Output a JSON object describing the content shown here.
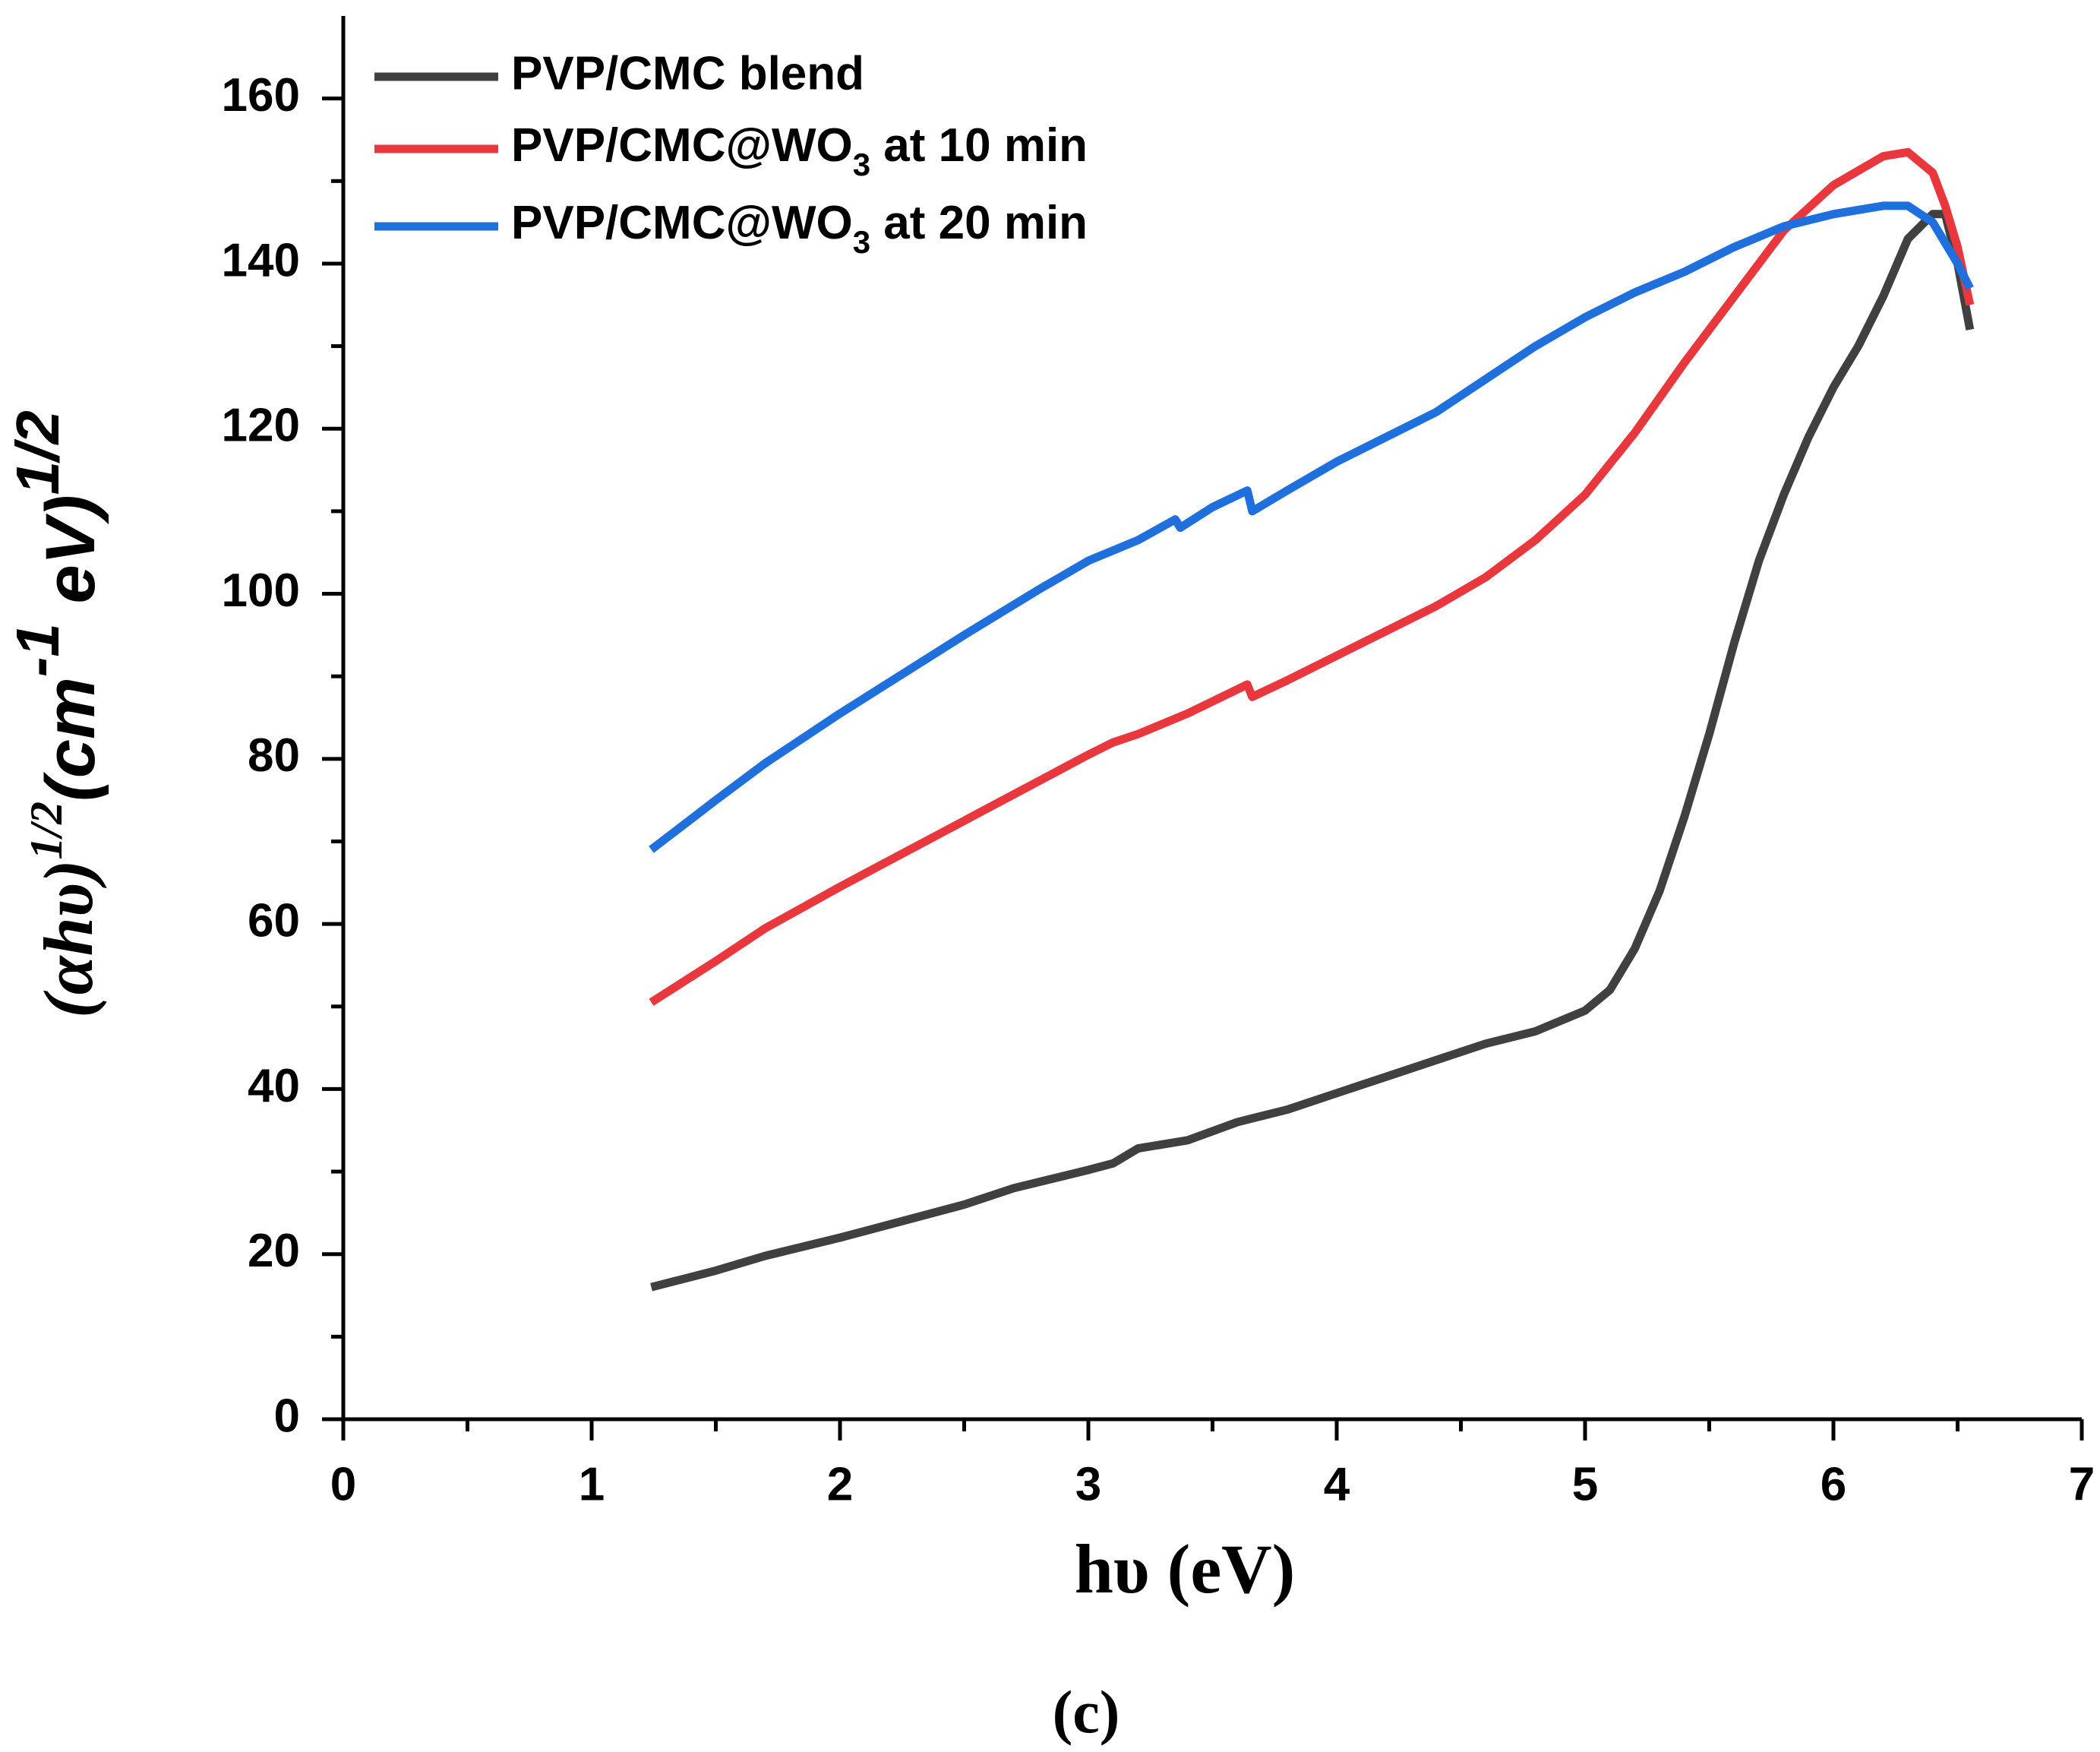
{
  "chart_data": {
    "type": "line",
    "xlabel": "hυ (eV)",
    "ylabel": [
      {
        "text": "(αhυ)",
        "sup": false
      },
      {
        "text": "1/2",
        "sup": true
      },
      {
        "text": "(cm",
        "sup": false
      },
      {
        "text": "-1",
        "sup": true
      },
      {
        "text": " eV)",
        "sup": false
      },
      {
        "text": "1/2",
        "sup": true
      }
    ],
    "caption": "(c)",
    "xlim": [
      0,
      7
    ],
    "xticks": [
      0,
      1,
      2,
      3,
      4,
      5,
      6,
      7
    ],
    "xminorticks": [
      0.5,
      1.5,
      2.5,
      3.5,
      4.5,
      5.5,
      6.5
    ],
    "ylim": [
      0,
      170
    ],
    "yticks": [
      0,
      20,
      40,
      60,
      80,
      100,
      120,
      140,
      160
    ],
    "yminorticks": [
      10,
      30,
      50,
      70,
      90,
      110,
      130,
      150
    ],
    "legend": "top-left",
    "series": [
      {
        "name": "PVP/CMC blend",
        "color": "#404040",
        "x": [
          1.24,
          1.5,
          1.7,
          2,
          2.5,
          2.7,
          3.0,
          3.1,
          3.2,
          3.4,
          3.6,
          3.8,
          4,
          4.2,
          4.4,
          4.6,
          4.8,
          5.0,
          5.1,
          5.2,
          5.3,
          5.4,
          5.5,
          5.6,
          5.7,
          5.8,
          5.9,
          6.0,
          6.1,
          6.2,
          6.3,
          6.4,
          6.45,
          6.5,
          6.55
        ],
        "values": [
          16,
          18,
          19.8,
          22,
          26,
          28,
          30.2,
          31,
          32.8,
          33.8,
          36,
          37.5,
          39.5,
          41.5,
          43.5,
          45.5,
          47,
          49.5,
          52,
          57,
          64,
          73,
          83,
          94,
          104,
          112,
          119,
          125,
          130,
          136,
          143,
          146,
          146,
          140,
          132
        ]
      },
      {
        "name": "PVP/CMC@WO3 at 10 min",
        "color": "#e8383d",
        "x": [
          1.24,
          1.5,
          1.7,
          2,
          2.5,
          3.0,
          3.1,
          3.2,
          3.4,
          3.64,
          3.66,
          3.8,
          4,
          4.2,
          4.4,
          4.6,
          4.8,
          5.0,
          5.2,
          5.4,
          5.6,
          5.8,
          6.0,
          6.2,
          6.3,
          6.4,
          6.45,
          6.5,
          6.55
        ],
        "values": [
          50.5,
          55.5,
          59.5,
          64.5,
          72.5,
          80.5,
          82,
          83,
          85.5,
          89,
          87.5,
          89.5,
          92.5,
          95.5,
          98.5,
          102,
          106.5,
          112,
          119.5,
          128,
          136,
          144,
          149.5,
          153,
          153.5,
          151,
          147,
          142,
          135
        ]
      },
      {
        "name": "PVP/CMC@WO3 at 20 min",
        "color": "#1f6fdc",
        "x": [
          1.24,
          1.5,
          1.7,
          2,
          2.5,
          2.8,
          3.0,
          3.2,
          3.35,
          3.37,
          3.5,
          3.64,
          3.66,
          3.8,
          4,
          4.2,
          4.4,
          4.6,
          4.8,
          5,
          5.2,
          5.4,
          5.6,
          5.8,
          6.0,
          6.2,
          6.3,
          6.4,
          6.5,
          6.55
        ],
        "values": [
          69,
          75,
          79.5,
          85.5,
          95,
          100.5,
          104,
          106.5,
          109,
          108,
          110.5,
          112.5,
          110,
          112.5,
          116,
          119,
          122,
          126,
          130,
          133.5,
          136.5,
          139,
          142,
          144.5,
          146,
          147,
          147,
          145,
          140,
          137
        ]
      }
    ]
  }
}
